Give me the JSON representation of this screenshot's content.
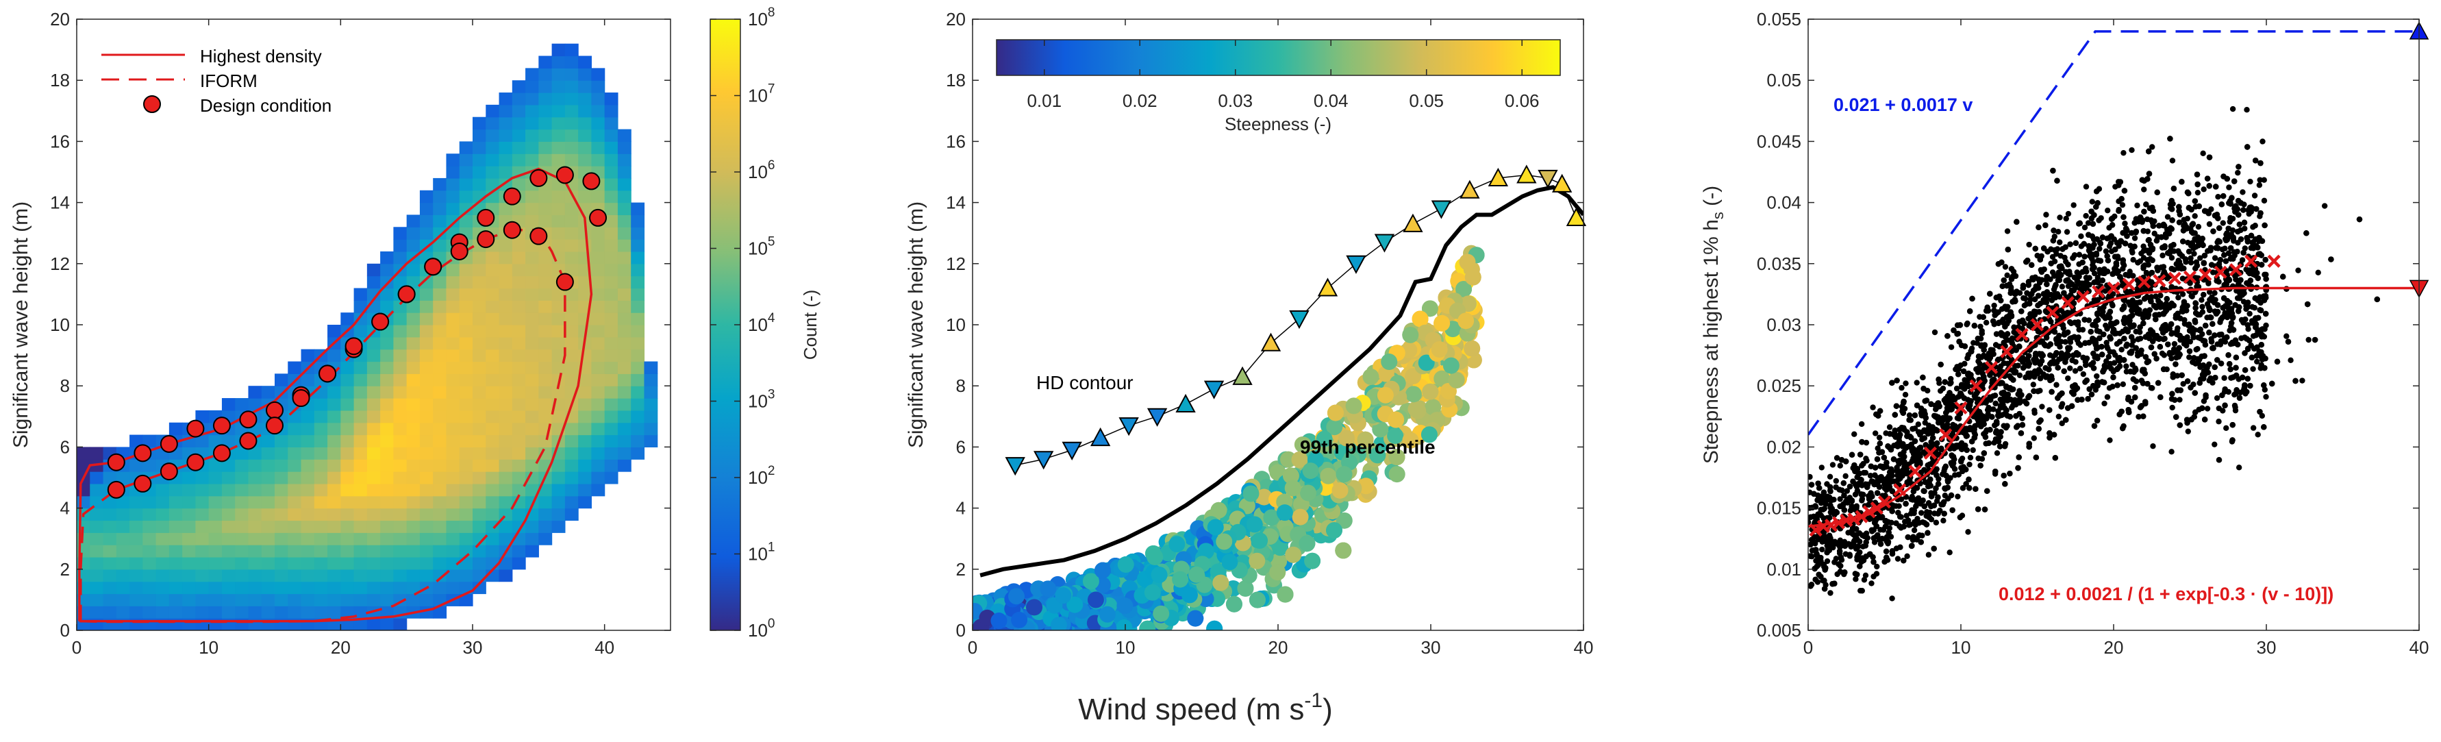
{
  "figure": {
    "shared_xlabel": "Wind speed (m s",
    "shared_xlabel_exp": "-1",
    "shared_xlabel_tail": ")"
  },
  "colors": {
    "red": "#e0191b",
    "blue": "#0a1ce8",
    "marker_red": "#e8201e",
    "black": "#000000"
  },
  "chart_data": [
    {
      "type": "heatmap",
      "xlim": [
        0,
        45
      ],
      "ylim": [
        0,
        20
      ],
      "xticks": [
        0,
        10,
        20,
        30,
        40
      ],
      "yticks": [
        0,
        2,
        4,
        6,
        8,
        10,
        12,
        14,
        16,
        18,
        20
      ],
      "ylabel": "Significant wave height (m)",
      "xlabel": "",
      "colorbar": {
        "label": "Count (-)",
        "scale": "log",
        "ticks": [
          "10^0",
          "10^1",
          "10^2",
          "10^3",
          "10^4",
          "10^5",
          "10^6",
          "10^7",
          "10^8"
        ],
        "tick_mantissa": "10",
        "tick_exponents": [
          "0",
          "1",
          "2",
          "3",
          "4",
          "5",
          "6",
          "7",
          "8"
        ]
      },
      "legend": {
        "position": "top-left",
        "entries": [
          {
            "label": "Highest density",
            "style": "solid-line"
          },
          {
            "label": "IFORM",
            "style": "dashed-line"
          },
          {
            "label": "Design condition",
            "style": "red-circle"
          }
        ]
      },
      "series": [
        {
          "name": "Highest density",
          "x": [
            0.2,
            0.2,
            0.3,
            1,
            3,
            7,
            11,
            15,
            19,
            21,
            23,
            25,
            27,
            29,
            31,
            33,
            35,
            37,
            38.5,
            39,
            38,
            36,
            34,
            32,
            30,
            27,
            24,
            21,
            18,
            15,
            12,
            9,
            6,
            3,
            0.5,
            0.2
          ],
          "y": [
            0.3,
            2,
            4.8,
            5.4,
            5.5,
            6.1,
            6.6,
            7.5,
            9.2,
            10,
            11.1,
            12,
            12.7,
            13.5,
            14.2,
            14.8,
            15.1,
            14.7,
            13.5,
            11,
            8,
            5.5,
            3.6,
            2.2,
            1.3,
            0.7,
            0.45,
            0.35,
            0.3,
            0.3,
            0.3,
            0.3,
            0.3,
            0.3,
            0.3,
            0.3
          ]
        },
        {
          "name": "IFORM",
          "x": [
            0.3,
            0.3,
            0.5,
            3,
            7,
            11,
            15,
            19,
            21,
            23,
            25,
            27,
            29,
            31,
            33,
            35,
            36,
            37,
            37,
            35.5,
            33,
            30,
            27,
            24,
            21,
            18,
            14,
            10,
            6,
            2,
            0.3
          ],
          "y": [
            0.3,
            2,
            3.8,
            4.6,
            5.2,
            5.8,
            6.6,
            8.2,
            9.1,
            10,
            10.9,
            11.7,
            12.3,
            12.8,
            13.1,
            13.1,
            12.4,
            11.4,
            9,
            6,
            4,
            2.6,
            1.5,
            0.8,
            0.45,
            0.3,
            0.28,
            0.28,
            0.28,
            0.28,
            0.3
          ]
        },
        {
          "name": "Design condition",
          "upper": [
            [
              3,
              5.5
            ],
            [
              5,
              5.8
            ],
            [
              7,
              6.1
            ],
            [
              9,
              6.6
            ],
            [
              11,
              6.7
            ],
            [
              13,
              6.9
            ],
            [
              15,
              7.2
            ],
            [
              17,
              7.7
            ],
            [
              19,
              8.4
            ],
            [
              21,
              9.2
            ],
            [
              23,
              10.1
            ],
            [
              25,
              11
            ],
            [
              27,
              11.9
            ],
            [
              29,
              12.7
            ],
            [
              31,
              13.5
            ],
            [
              33,
              14.2
            ],
            [
              35,
              14.8
            ],
            [
              37,
              14.9
            ],
            [
              39,
              14.7
            ],
            [
              39.5,
              13.5
            ]
          ],
          "lower": [
            [
              3,
              4.6
            ],
            [
              5,
              4.8
            ],
            [
              7,
              5.2
            ],
            [
              9,
              5.5
            ],
            [
              11,
              5.8
            ],
            [
              13,
              6.2
            ],
            [
              15,
              6.7
            ],
            [
              17,
              7.6
            ],
            [
              19,
              8.4
            ],
            [
              21,
              9.3
            ],
            [
              23,
              10.1
            ],
            [
              25,
              11
            ],
            [
              27,
              11.9
            ],
            [
              29,
              12.4
            ],
            [
              31,
              12.8
            ],
            [
              33,
              13.1
            ],
            [
              35,
              12.9
            ],
            [
              37,
              11.4
            ]
          ]
        }
      ]
    },
    {
      "type": "scatter",
      "xlim": [
        0,
        40
      ],
      "ylim": [
        0,
        20
      ],
      "xticks": [
        0,
        10,
        20,
        30,
        40
      ],
      "yticks": [
        0,
        2,
        4,
        6,
        8,
        10,
        12,
        14,
        16,
        18,
        20
      ],
      "ylabel": "Significant wave height (m)",
      "xlabel": "",
      "colorbar": {
        "label": "Steepness (-)",
        "orientation": "horizontal",
        "range": [
          0.005,
          0.064
        ],
        "ticks": [
          0.01,
          0.02,
          0.03,
          0.04,
          0.05,
          0.06
        ]
      },
      "annotations": [
        "HD contour",
        "99th percentile"
      ],
      "series": [
        {
          "name": "HD contour",
          "marker": "triangle",
          "points": [
            [
              3,
              5.4,
              "down",
              0.025
            ],
            [
              5,
              5.6,
              "down",
              0.021
            ],
            [
              7,
              5.9,
              "down",
              0.02
            ],
            [
              9,
              6.3,
              "up",
              0.02
            ],
            [
              11,
              6.7,
              "down",
              0.022
            ],
            [
              13,
              7.0,
              "down",
              0.019
            ],
            [
              15,
              7.4,
              "up",
              0.028
            ],
            [
              17,
              7.9,
              "down",
              0.024
            ],
            [
              19,
              8.3,
              "up",
              0.044
            ],
            [
              21,
              9.4,
              "up",
              0.055
            ],
            [
              23,
              10.2,
              "down",
              0.028
            ],
            [
              25,
              11.2,
              "up",
              0.058
            ],
            [
              27,
              12.0,
              "down",
              0.025
            ],
            [
              29,
              12.7,
              "down",
              0.03
            ],
            [
              31,
              13.3,
              "up",
              0.055
            ],
            [
              33,
              13.8,
              "down",
              0.03
            ],
            [
              35,
              14.4,
              "up",
              0.055
            ],
            [
              37,
              14.8,
              "up",
              0.058
            ],
            [
              39,
              14.9,
              "up",
              0.06
            ],
            [
              40.5,
              14.8,
              "down",
              0.05
            ],
            [
              41.5,
              14.6,
              "up",
              0.058
            ],
            [
              42.5,
              13.5,
              "up",
              0.06
            ]
          ]
        },
        {
          "name": "99th percentile",
          "x": [
            0.5,
            2,
            4,
            6,
            8,
            10,
            12,
            14,
            16,
            18,
            20,
            22,
            24,
            26,
            28,
            29,
            30,
            31,
            32,
            33,
            34,
            35,
            36,
            37,
            38,
            39,
            40
          ],
          "y": [
            1.8,
            2.0,
            2.15,
            2.3,
            2.6,
            3.0,
            3.5,
            4.1,
            4.8,
            5.6,
            6.5,
            7.4,
            8.3,
            9.2,
            10.3,
            11.4,
            11.5,
            12.6,
            13.2,
            13.6,
            13.6,
            13.9,
            14.2,
            14.4,
            14.5,
            14.2,
            13.6
          ]
        }
      ]
    },
    {
      "type": "scatter",
      "xlim": [
        0,
        40
      ],
      "ylim": [
        0.005,
        0.055
      ],
      "xticks": [
        0,
        10,
        20,
        30,
        40
      ],
      "yticks": [
        0.005,
        0.01,
        0.015,
        0.02,
        0.025,
        0.03,
        0.035,
        0.04,
        0.045,
        0.05,
        0.055
      ],
      "ylabel_prefix": "Steepness at highest 1% h",
      "ylabel_sub": "s",
      "ylabel_suffix": " (-)",
      "xlabel": "",
      "annotations": [
        "0.021 + 0.0017 v",
        "0.012 + 0.0021 / (1 + exp[-0.3 · (v - 10)])"
      ],
      "series": [
        {
          "name": "0.021 + 0.0017 v",
          "style": "blue-dashed",
          "x": [
            0,
            18.8,
            40
          ],
          "y": [
            0.021,
            0.054,
            0.054
          ]
        },
        {
          "name": "0.012 + 0.0021 / (1 + exp[-0.3 · (v - 10)])",
          "style": "red-solid",
          "x": [
            0,
            2,
            4,
            6,
            8,
            10,
            12,
            14,
            16,
            18,
            20,
            22,
            24,
            26,
            28,
            30,
            40
          ],
          "y": [
            0.0135,
            0.0138,
            0.0145,
            0.016,
            0.018,
            0.0215,
            0.0248,
            0.0277,
            0.0298,
            0.0313,
            0.0321,
            0.0326,
            0.0328,
            0.0329,
            0.033,
            0.033,
            0.033
          ]
        },
        {
          "name": "binned crosses",
          "x": [
            0.5,
            1,
            1.5,
            2,
            2.5,
            3,
            3.5,
            4,
            4.5,
            5,
            6,
            7,
            8,
            9,
            10,
            11,
            12,
            13,
            14,
            15,
            16,
            17,
            18,
            19,
            20,
            21,
            22,
            23,
            24,
            25,
            26,
            27,
            28,
            29,
            30.5
          ],
          "y": [
            0.0132,
            0.0135,
            0.0136,
            0.0138,
            0.014,
            0.0141,
            0.0143,
            0.0147,
            0.015,
            0.0155,
            0.0165,
            0.018,
            0.0195,
            0.021,
            0.0232,
            0.025,
            0.0265,
            0.0278,
            0.0292,
            0.03,
            0.031,
            0.0318,
            0.0323,
            0.0327,
            0.033,
            0.0333,
            0.0335,
            0.0336,
            0.0338,
            0.0339,
            0.0341,
            0.0343,
            0.0345,
            0.0352,
            0.0352
          ]
        }
      ]
    }
  ]
}
